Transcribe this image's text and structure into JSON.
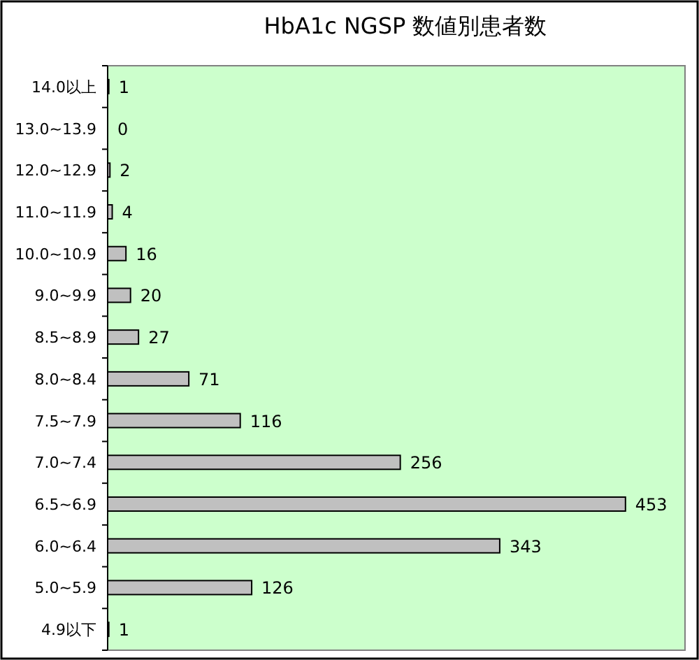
{
  "chart_data": {
    "type": "bar",
    "orientation": "horizontal",
    "title": "HbA1c NGSP 数値別患者数",
    "categories": [
      "14.0以上",
      "13.0~13.9",
      "12.0~12.9",
      "11.0~11.9",
      "10.0~10.9",
      "9.0~9.9",
      "8.5~8.9",
      "8.0~8.4",
      "7.5~7.9",
      "7.0~7.4",
      "6.5~6.9",
      "6.0~6.4",
      "5.0~5.9",
      "4.9以下"
    ],
    "values": [
      1,
      0,
      2,
      4,
      16,
      20,
      27,
      71,
      116,
      256,
      453,
      343,
      126,
      1
    ],
    "color": "#c0c0c0",
    "data_labels": true
  }
}
